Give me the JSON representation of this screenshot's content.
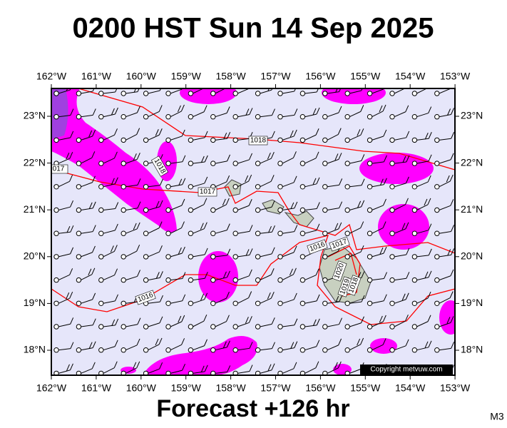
{
  "title": "0200 HST Sun 14 Sep 2025",
  "footer": "Forecast +126 hr",
  "corner_label": "M3",
  "copyright": "Copyright metvuw.com",
  "longitude_labels": [
    "162°W",
    "161°W",
    "160°W",
    "159°W",
    "158°W",
    "157°W",
    "156°W",
    "155°W",
    "154°W",
    "153°W"
  ],
  "latitude_labels": [
    "23°N",
    "22°N",
    "21°N",
    "20°N",
    "19°N",
    "18°N"
  ],
  "isobar_labels": [
    "1018",
    "017",
    "1017",
    "1018",
    "1016",
    "1017",
    "1016",
    "1020",
    "1019",
    "1018"
  ]
}
